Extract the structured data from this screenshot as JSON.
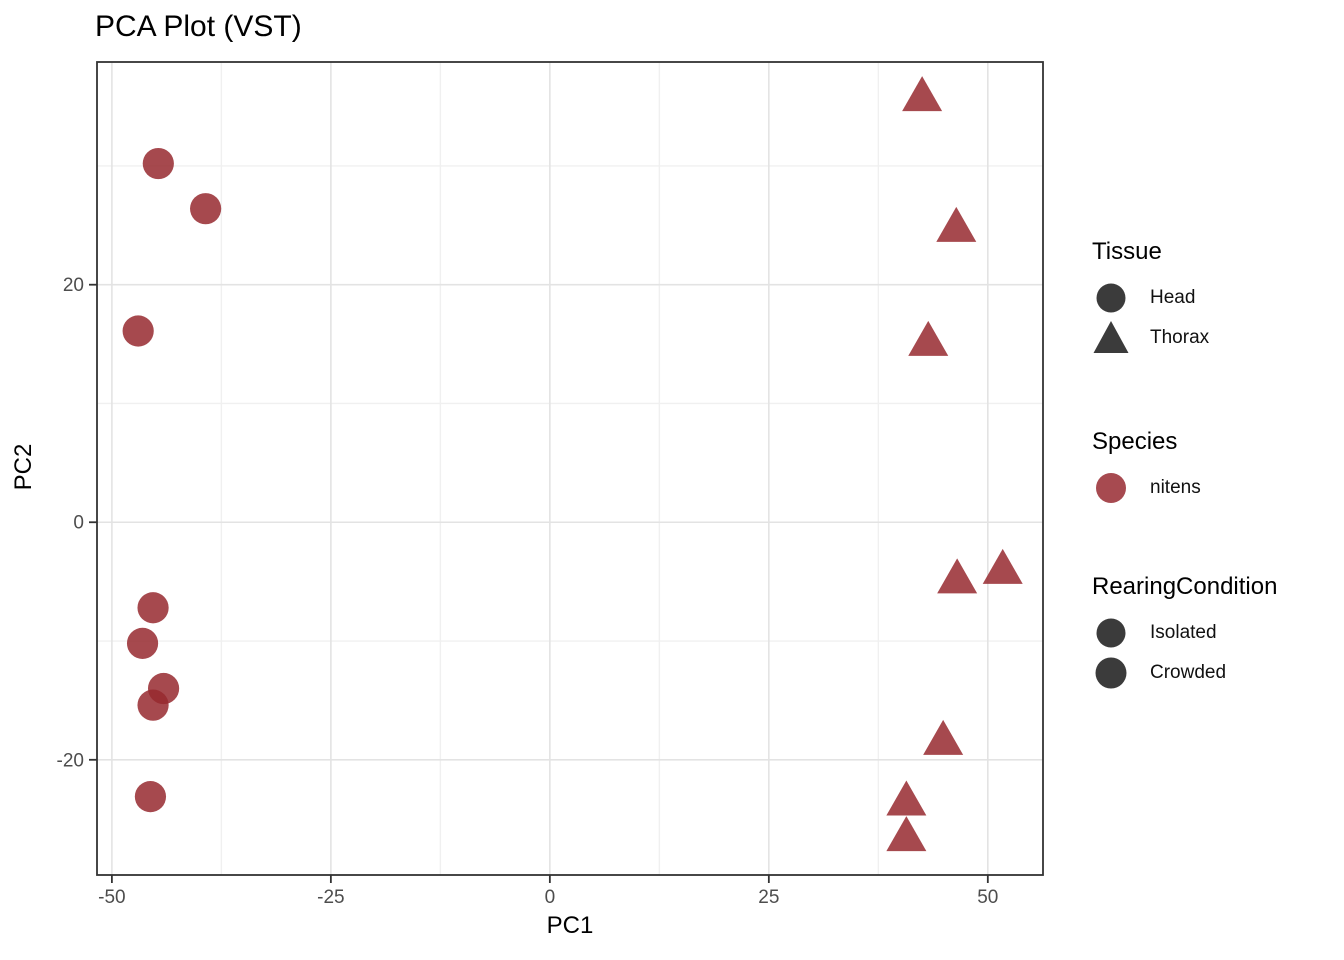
{
  "title": "PCA Plot (VST)",
  "chart_data": {
    "type": "scatter",
    "title": "PCA Plot (VST)",
    "xlabel": "PC1",
    "ylabel": "PC2",
    "xlim": [
      -51.7,
      56.3
    ],
    "ylim": [
      -29.7,
      38.75
    ],
    "x_major_ticks": [
      -50,
      -25,
      0,
      25,
      50
    ],
    "x_minor_gridlines": [
      -37.5,
      -12.5,
      12.5,
      37.5
    ],
    "y_major_ticks": [
      -20,
      0,
      20
    ],
    "y_minor_gridlines": [
      -10,
      10,
      30
    ],
    "grid": true,
    "legend_position": "right",
    "point_color": "#97292F",
    "point_opacity": 0.85,
    "series": [
      {
        "name": "Head",
        "shape": "circle",
        "species": "nitens",
        "points": [
          [
            -44.7,
            30.2
          ],
          [
            -39.3,
            26.4
          ],
          [
            -47.0,
            16.1
          ],
          [
            -45.3,
            -7.2
          ],
          [
            -46.5,
            -10.2
          ],
          [
            -44.1,
            -14.0
          ],
          [
            -45.3,
            -15.4
          ],
          [
            -45.6,
            -23.1
          ]
        ]
      },
      {
        "name": "Thorax",
        "shape": "triangle",
        "species": "nitens",
        "points": [
          [
            42.5,
            36.0
          ],
          [
            46.4,
            25.0
          ],
          [
            43.2,
            15.4
          ],
          [
            46.5,
            -4.6
          ],
          [
            51.7,
            -3.8
          ],
          [
            44.9,
            -18.2
          ],
          [
            40.7,
            -23.3
          ],
          [
            40.7,
            -26.3
          ]
        ]
      }
    ]
  },
  "legend": {
    "tissue": {
      "title": "Tissue",
      "items": [
        {
          "label": "Head",
          "shape": "circle",
          "color": "#3B3B3B"
        },
        {
          "label": "Thorax",
          "shape": "triangle",
          "color": "#3B3B3B"
        }
      ]
    },
    "species": {
      "title": "Species",
      "items": [
        {
          "label": "nitens",
          "shape": "circle",
          "color": "#A74A50"
        }
      ]
    },
    "rearing": {
      "title": "RearingCondition",
      "items": [
        {
          "label": "Isolated",
          "shape": "circle",
          "color": "#3B3B3B"
        },
        {
          "label": "Crowded",
          "shape": "circle",
          "color": "#3B3B3B"
        }
      ]
    }
  },
  "colors": {
    "point_fill": "#97292F",
    "grid_major": "#E3E3E3",
    "grid_minor": "#F0F0F0",
    "panel_border": "#333333",
    "tick_mark": "#333333",
    "tick_label": "#4D4D4D",
    "panel_background": "#FFFFFF"
  }
}
